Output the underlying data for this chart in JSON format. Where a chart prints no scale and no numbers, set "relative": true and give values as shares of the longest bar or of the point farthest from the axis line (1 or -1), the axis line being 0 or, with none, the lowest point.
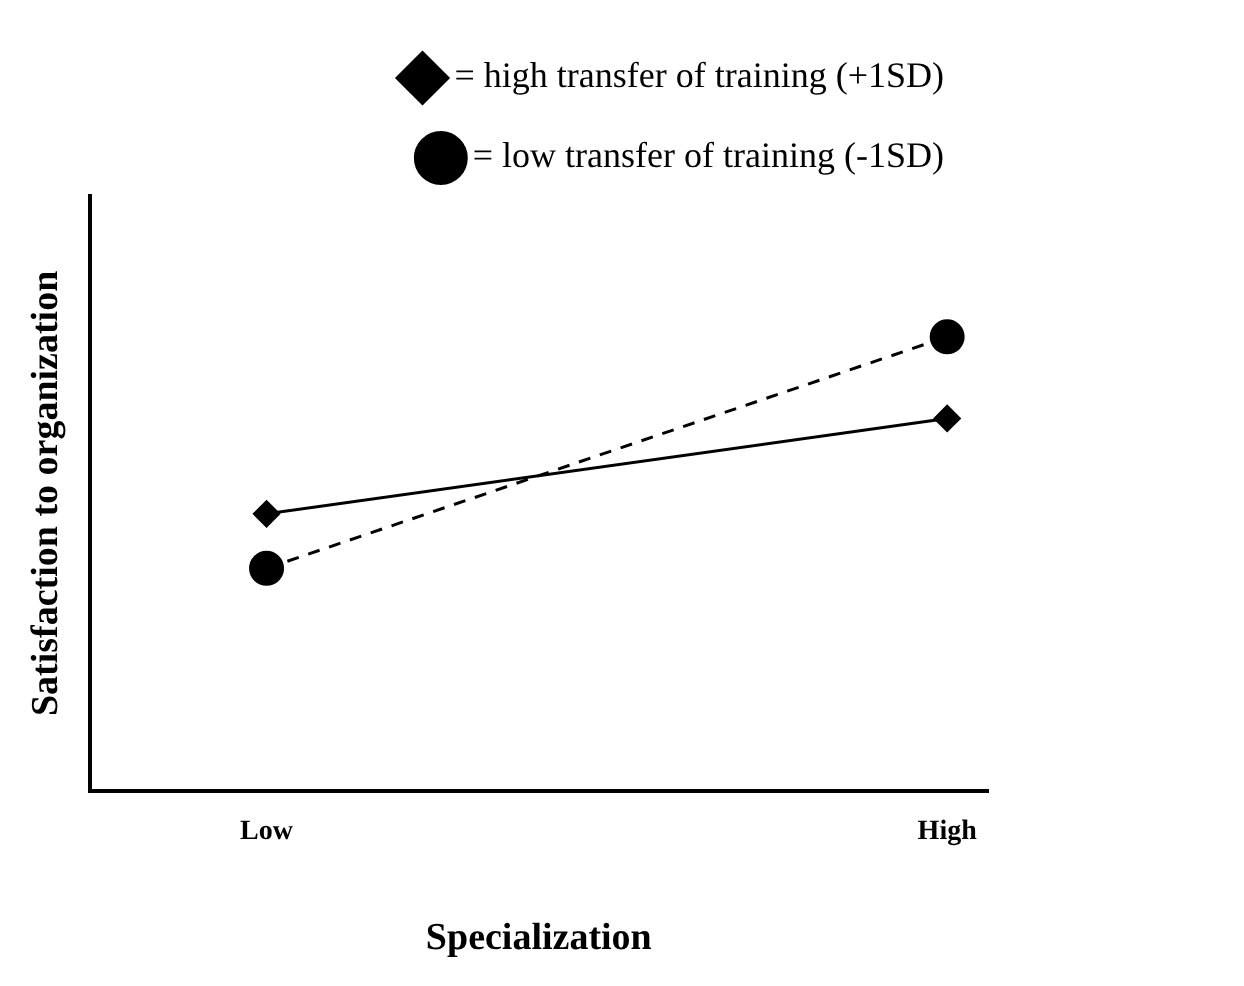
{
  "chart_data": {
    "type": "line",
    "relative": true,
    "xlabel": "Specialization",
    "ylabel": "Satisfaction to organization",
    "categories": [
      "Low",
      "High"
    ],
    "legend": "top",
    "grid": false,
    "series": [
      {
        "name": "= high transfer of training (+1SD)",
        "color": "#000000",
        "values": [
          0.61,
          0.82
        ],
        "marker": "diamond",
        "line_style": "solid"
      },
      {
        "name": "= low transfer of training (-1SD)",
        "color": "#000000",
        "values": [
          0.49,
          1
        ],
        "marker": "circle",
        "line_style": "dashed"
      }
    ]
  }
}
